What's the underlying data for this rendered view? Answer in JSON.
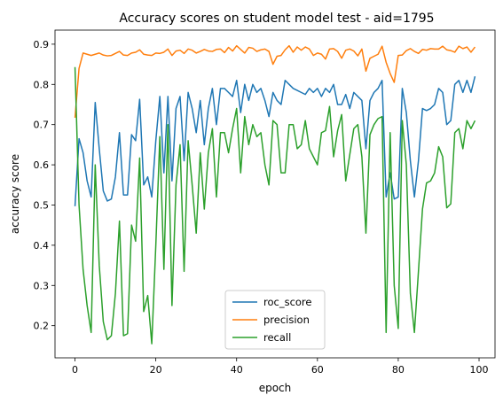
{
  "chart_data": {
    "type": "line",
    "title": "Accuracy scores on student model test - aid=1795",
    "xlabel": "epoch",
    "ylabel": "accuracy score",
    "xlim": [
      -4.95,
      103.95
    ],
    "ylim": [
      0.12,
      0.935
    ],
    "xticks": [
      0,
      20,
      40,
      60,
      80,
      100
    ],
    "yticks": [
      0.2,
      0.3,
      0.4,
      0.5,
      0.6,
      0.7,
      0.8,
      0.9
    ],
    "xtick_labels": [
      "0",
      "20",
      "40",
      "60",
      "80",
      "100"
    ],
    "ytick_labels": [
      "0.2",
      "0.3",
      "0.4",
      "0.5",
      "0.6",
      "0.7",
      "0.8",
      "0.9"
    ],
    "grid": false,
    "legend_position": "lower center",
    "series": [
      {
        "name": "roc_score",
        "color": "#1f77b4",
        "values": [
          0.497,
          0.665,
          0.63,
          0.56,
          0.52,
          0.755,
          0.64,
          0.535,
          0.51,
          0.515,
          0.57,
          0.68,
          0.525,
          0.525,
          0.675,
          0.66,
          0.763,
          0.55,
          0.57,
          0.52,
          0.66,
          0.77,
          0.58,
          0.77,
          0.56,
          0.74,
          0.77,
          0.61,
          0.78,
          0.74,
          0.68,
          0.76,
          0.65,
          0.74,
          0.79,
          0.7,
          0.79,
          0.79,
          0.78,
          0.77,
          0.81,
          0.73,
          0.8,
          0.76,
          0.8,
          0.78,
          0.79,
          0.76,
          0.72,
          0.78,
          0.76,
          0.75,
          0.81,
          0.8,
          0.79,
          0.785,
          0.78,
          0.775,
          0.79,
          0.78,
          0.79,
          0.77,
          0.79,
          0.78,
          0.8,
          0.75,
          0.75,
          0.775,
          0.74,
          0.78,
          0.77,
          0.76,
          0.64,
          0.76,
          0.78,
          0.79,
          0.81,
          0.52,
          0.58,
          0.515,
          0.52,
          0.79,
          0.73,
          0.61,
          0.52,
          0.61,
          0.74,
          0.735,
          0.74,
          0.75,
          0.79,
          0.78,
          0.7,
          0.71,
          0.8,
          0.81,
          0.78,
          0.81,
          0.78,
          0.82
        ]
      },
      {
        "name": "precision",
        "color": "#ff7f0e",
        "values": [
          0.717,
          0.84,
          0.878,
          0.875,
          0.872,
          0.875,
          0.878,
          0.873,
          0.871,
          0.872,
          0.877,
          0.882,
          0.873,
          0.872,
          0.878,
          0.88,
          0.886,
          0.875,
          0.873,
          0.872,
          0.878,
          0.877,
          0.88,
          0.888,
          0.872,
          0.883,
          0.885,
          0.877,
          0.888,
          0.885,
          0.878,
          0.882,
          0.887,
          0.883,
          0.882,
          0.887,
          0.888,
          0.879,
          0.892,
          0.883,
          0.896,
          0.887,
          0.878,
          0.892,
          0.89,
          0.882,
          0.886,
          0.888,
          0.882,
          0.85,
          0.87,
          0.872,
          0.886,
          0.896,
          0.88,
          0.893,
          0.885,
          0.893,
          0.888,
          0.872,
          0.878,
          0.875,
          0.863,
          0.888,
          0.889,
          0.882,
          0.865,
          0.885,
          0.888,
          0.883,
          0.871,
          0.888,
          0.833,
          0.865,
          0.87,
          0.875,
          0.895,
          0.855,
          0.827,
          0.805,
          0.872,
          0.873,
          0.884,
          0.889,
          0.882,
          0.877,
          0.887,
          0.885,
          0.889,
          0.888,
          0.888,
          0.895,
          0.886,
          0.884,
          0.88,
          0.895,
          0.889,
          0.893,
          0.88,
          0.893
        ]
      },
      {
        "name": "recall",
        "color": "#2ca02c",
        "values": [
          0.843,
          0.5,
          0.34,
          0.25,
          0.183,
          0.6,
          0.35,
          0.21,
          0.165,
          0.175,
          0.28,
          0.46,
          0.175,
          0.18,
          0.45,
          0.41,
          0.617,
          0.235,
          0.275,
          0.155,
          0.4,
          0.67,
          0.34,
          0.7,
          0.25,
          0.55,
          0.65,
          0.335,
          0.66,
          0.55,
          0.43,
          0.63,
          0.49,
          0.63,
          0.69,
          0.52,
          0.68,
          0.68,
          0.63,
          0.69,
          0.74,
          0.58,
          0.72,
          0.65,
          0.7,
          0.67,
          0.68,
          0.6,
          0.55,
          0.71,
          0.7,
          0.58,
          0.58,
          0.7,
          0.7,
          0.64,
          0.65,
          0.71,
          0.64,
          0.62,
          0.6,
          0.68,
          0.685,
          0.745,
          0.62,
          0.685,
          0.725,
          0.56,
          0.625,
          0.69,
          0.7,
          0.62,
          0.43,
          0.675,
          0.7,
          0.715,
          0.72,
          0.183,
          0.68,
          0.3,
          0.193,
          0.71,
          0.6,
          0.28,
          0.183,
          0.335,
          0.49,
          0.555,
          0.56,
          0.58,
          0.645,
          0.62,
          0.493,
          0.503,
          0.68,
          0.69,
          0.64,
          0.71,
          0.69,
          0.71
        ]
      }
    ]
  }
}
